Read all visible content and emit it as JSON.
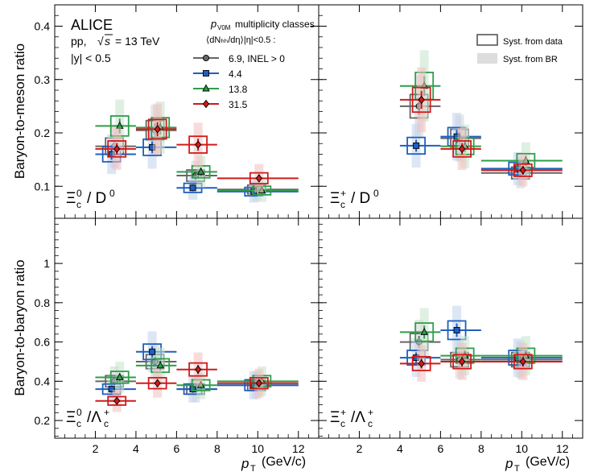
{
  "header": {
    "experiment": "ALICE",
    "system": "pp,",
    "energy_label": "= 13 TeV",
    "rapidity": "|y| < 0.5",
    "class_title": "multiplicity classes",
    "class_title_var": "p",
    "class_title_sub": "V0M",
    "class_subtitle": "⟨dNₕₕ/dη⟩|η|<0.5 :",
    "syst_data_label": "Syst. from data",
    "syst_br_label": "Syst. from BR"
  },
  "axes": {
    "top_ylabel": "Baryon-to-meson ratio",
    "bottom_ylabel": "Baryon-to-baryon ratio",
    "xlabel": "(GeV/c)",
    "xlabel_var": "p",
    "xlabel_sub": "T"
  },
  "chart_data": [
    {
      "type": "scatter",
      "title": "Ξ⁰c / D⁰",
      "panel_label": "Ξc⁰ / D⁰",
      "xlabel": "pT (GeV/c)",
      "ylabel": "Baryon-to-meson ratio",
      "xlim": [
        0,
        13
      ],
      "ylim": [
        0.04,
        0.44
      ],
      "yticks": [
        0.1,
        0.2,
        0.3,
        0.4
      ],
      "xticks": [
        2,
        4,
        6,
        8,
        10,
        12
      ],
      "x": [
        3,
        5,
        7,
        10
      ],
      "x_bin_edges": [
        [
          2,
          4
        ],
        [
          4,
          6
        ],
        [
          6,
          8
        ],
        [
          8,
          12
        ]
      ],
      "series": [
        {
          "name": "6.9, INEL > 0",
          "color": "#666666",
          "marker": "circle",
          "values": [
            0.175,
            0.205,
            0.12,
            0.094
          ]
        },
        {
          "name": "4.4",
          "color": "#1f5fbf",
          "marker": "square",
          "values": [
            0.16,
            0.173,
            0.097,
            0.09
          ]
        },
        {
          "name": "13.8",
          "color": "#2e9e4a",
          "marker": "triangle",
          "values": [
            0.213,
            0.21,
            0.127,
            0.092
          ]
        },
        {
          "name": "31.5",
          "color": "#d01a1a",
          "marker": "diamond",
          "values": [
            0.17,
            0.207,
            0.178,
            0.115
          ]
        }
      ]
    },
    {
      "type": "scatter",
      "title": "Ξ⁺c / D⁰",
      "panel_label": "Ξc⁺ / D⁰",
      "xlabel": "pT (GeV/c)",
      "ylabel": "Baryon-to-meson ratio",
      "xlim": [
        0,
        13
      ],
      "ylim": [
        0.04,
        0.44
      ],
      "yticks": [
        0.1,
        0.2,
        0.3,
        0.4
      ],
      "xticks": [
        2,
        4,
        6,
        8,
        10,
        12
      ],
      "x": [
        5,
        7,
        10
      ],
      "x_bin_edges": [
        [
          4,
          6
        ],
        [
          6,
          8
        ],
        [
          8,
          12
        ]
      ],
      "series": [
        {
          "name": "6.9, INEL > 0",
          "color": "#666666",
          "marker": "circle",
          "values": [
            0.25,
            0.19,
            0.125
          ]
        },
        {
          "name": "4.4",
          "color": "#1f5fbf",
          "marker": "square",
          "values": [
            0.176,
            0.193,
            0.133
          ]
        },
        {
          "name": "13.8",
          "color": "#2e9e4a",
          "marker": "triangle",
          "values": [
            0.288,
            0.175,
            0.148
          ]
        },
        {
          "name": "31.5",
          "color": "#d01a1a",
          "marker": "diamond",
          "values": [
            0.262,
            0.17,
            0.13
          ]
        }
      ]
    },
    {
      "type": "scatter",
      "title": "Ξ⁰c / Λ⁺c",
      "panel_label": "Ξc⁰ / Λc⁺",
      "xlabel": "pT (GeV/c)",
      "ylabel": "Baryon-to-baryon ratio",
      "xlim": [
        0,
        13
      ],
      "ylim": [
        0.11,
        1.23
      ],
      "yticks": [
        0.2,
        0.4,
        0.6,
        0.8,
        1
      ],
      "xticks": [
        2,
        4,
        6,
        8,
        10,
        12
      ],
      "x": [
        3,
        5,
        7,
        10
      ],
      "x_bin_edges": [
        [
          2,
          4
        ],
        [
          4,
          6
        ],
        [
          6,
          8
        ],
        [
          8,
          12
        ]
      ],
      "series": [
        {
          "name": "6.9, INEL > 0",
          "color": "#666666",
          "marker": "circle",
          "values": [
            0.4,
            0.5,
            0.36,
            0.38
          ]
        },
        {
          "name": "4.4",
          "color": "#1f5fbf",
          "marker": "square",
          "values": [
            0.36,
            0.55,
            0.36,
            0.38
          ]
        },
        {
          "name": "13.8",
          "color": "#2e9e4a",
          "marker": "triangle",
          "values": [
            0.42,
            0.48,
            0.38,
            0.4
          ]
        },
        {
          "name": "31.5",
          "color": "#d01a1a",
          "marker": "diamond",
          "values": [
            0.3,
            0.39,
            0.46,
            0.39
          ]
        }
      ]
    },
    {
      "type": "scatter",
      "title": "Ξ⁺c / Λ⁺c",
      "panel_label": "Ξc⁺ / Λc⁺",
      "xlabel": "pT (GeV/c)",
      "ylabel": "Baryon-to-baryon ratio",
      "xlim": [
        0,
        13
      ],
      "ylim": [
        0.11,
        1.23
      ],
      "yticks": [
        0.2,
        0.4,
        0.6,
        0.8,
        1
      ],
      "xticks": [
        2,
        4,
        6,
        8,
        10,
        12
      ],
      "x": [
        5,
        7,
        10
      ],
      "x_bin_edges": [
        [
          4,
          6
        ],
        [
          6,
          8
        ],
        [
          8,
          12
        ]
      ],
      "series": [
        {
          "name": "6.9, INEL > 0",
          "color": "#666666",
          "marker": "circle",
          "values": [
            0.6,
            0.51,
            0.51
          ]
        },
        {
          "name": "4.4",
          "color": "#1f5fbf",
          "marker": "square",
          "values": [
            0.52,
            0.66,
            0.52
          ]
        },
        {
          "name": "13.8",
          "color": "#2e9e4a",
          "marker": "triangle",
          "values": [
            0.65,
            0.53,
            0.53
          ]
        },
        {
          "name": "31.5",
          "color": "#d01a1a",
          "marker": "diamond",
          "values": [
            0.49,
            0.5,
            0.5
          ]
        }
      ]
    }
  ]
}
